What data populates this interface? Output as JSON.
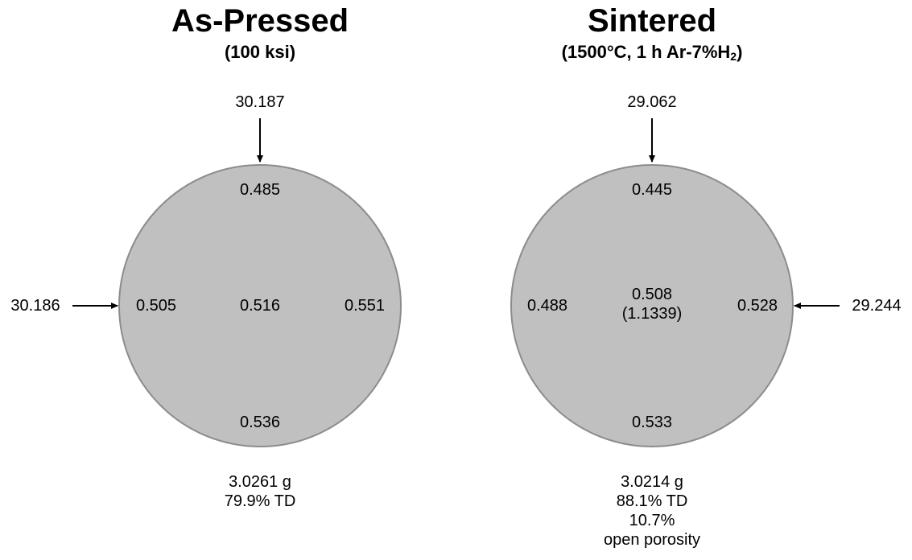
{
  "panels": [
    {
      "title": "As-Pressed",
      "subtitle": "(100 ksi)",
      "arrow_top_value": "30.187",
      "arrow_side_value": "30.186",
      "thickness": {
        "top": "0.485",
        "left": "0.505",
        "center": "0.516",
        "right": "0.551",
        "bottom": "0.536"
      },
      "footer": {
        "mass": "3.0261 g",
        "density": "79.9% TD"
      }
    },
    {
      "title": "Sintered",
      "subtitle_main": "(1500°C, 1 h Ar-7%H",
      "subtitle_sub": "2",
      "subtitle_end": ")",
      "arrow_top_value": "29.062",
      "arrow_side_value": "29.244",
      "thickness": {
        "top": "0.445",
        "left": "0.488",
        "center": "0.508",
        "center_paren": "(1.1339)",
        "right": "0.528",
        "bottom": "0.533"
      },
      "footer": {
        "mass": "3.0214 g",
        "density": "88.1% TD",
        "porosity": "10.7%",
        "porosity_label": "open porosity"
      }
    }
  ],
  "colors": {
    "disc_fill": "#c0c0c0",
    "disc_stroke": "#8c8c8c",
    "text": "#000000"
  }
}
